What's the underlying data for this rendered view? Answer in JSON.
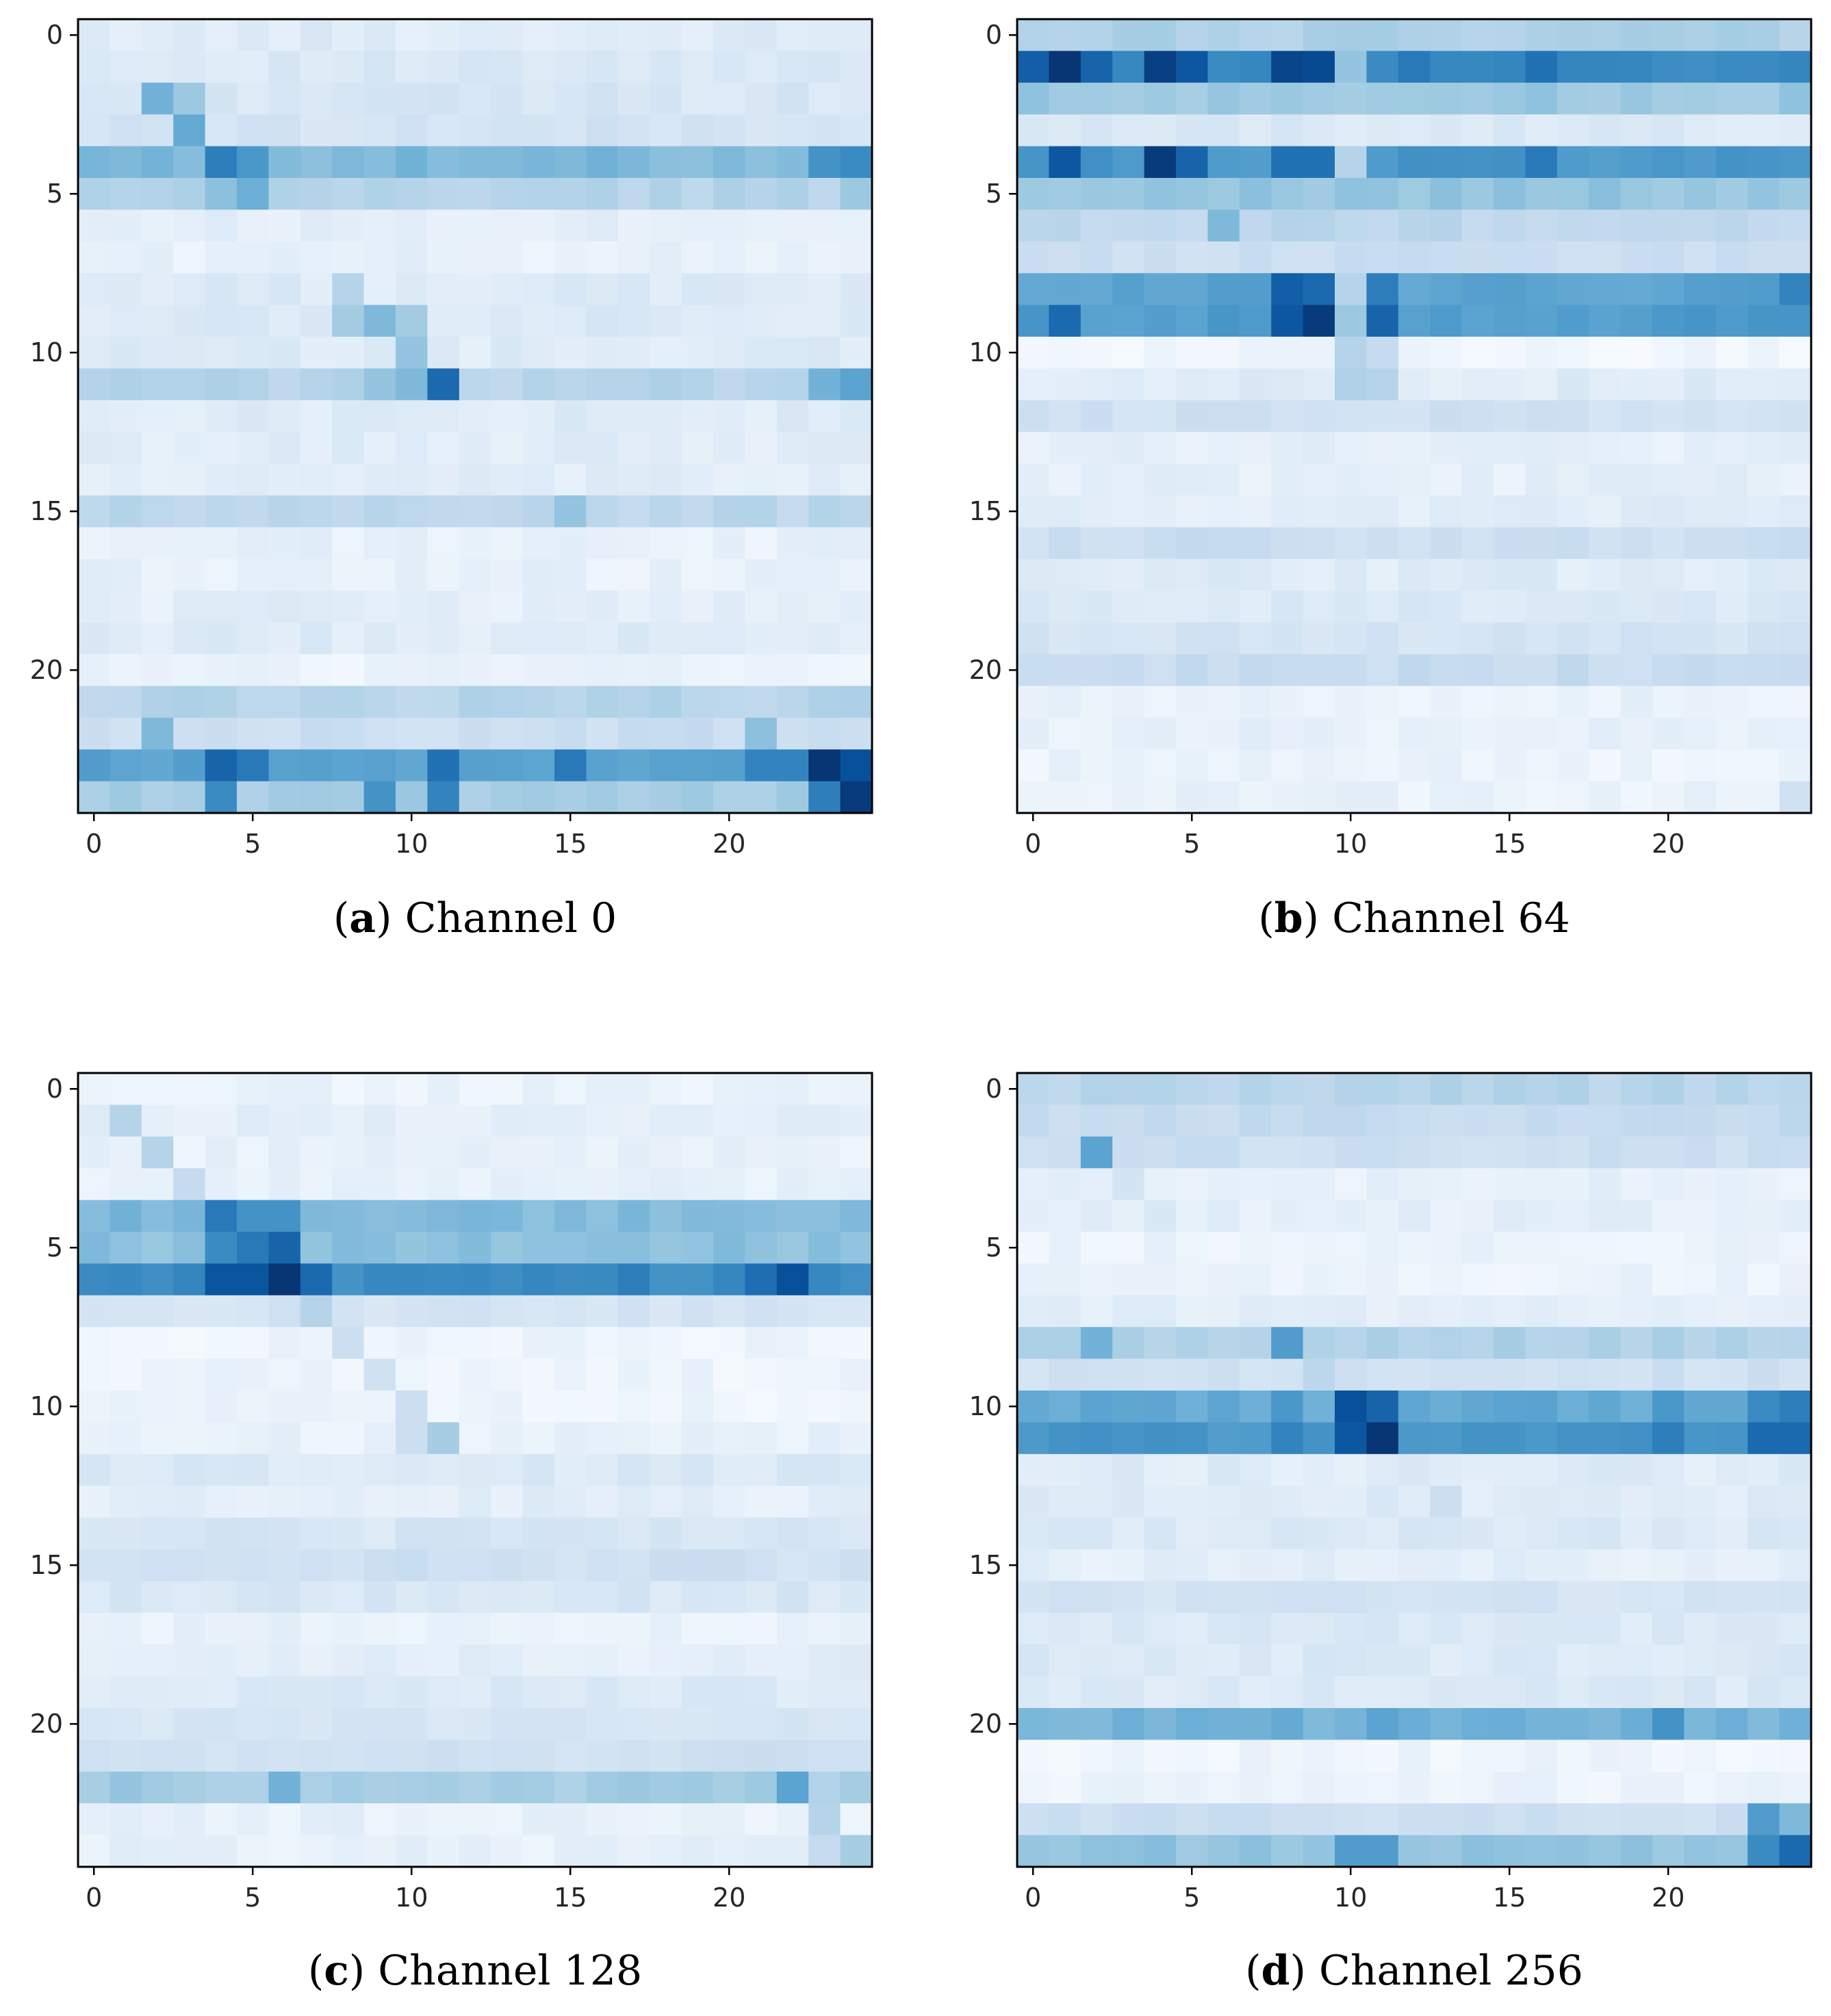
{
  "figure": {
    "colormap": "Blues",
    "colormap_low": "#f7fbff",
    "colormap_high": "#08306b"
  },
  "chart_data": [
    {
      "type": "heatmap",
      "panel": "a",
      "caption": {
        "letter": "a",
        "text": "Channel 0"
      },
      "xticks": [
        0,
        5,
        10,
        15,
        20
      ],
      "yticks": [
        0,
        5,
        10,
        15,
        20
      ],
      "xlim": [
        0,
        24
      ],
      "ylim": [
        0,
        24
      ],
      "grid": false,
      "rows": 25,
      "cols": 25,
      "row_base": [
        0.12,
        0.14,
        0.16,
        0.18,
        0.45,
        0.3,
        0.1,
        0.08,
        0.13,
        0.14,
        0.12,
        0.3,
        0.12,
        0.11,
        0.1,
        0.28,
        0.08,
        0.08,
        0.1,
        0.12,
        0.06,
        0.3,
        0.22,
        0.55,
        0.35
      ],
      "overrides": [
        [
          2,
          2,
          0.48
        ],
        [
          2,
          3,
          0.38
        ],
        [
          3,
          3,
          0.52
        ],
        [
          4,
          4,
          0.7
        ],
        [
          4,
          5,
          0.6
        ],
        [
          4,
          23,
          0.62
        ],
        [
          4,
          24,
          0.65
        ],
        [
          5,
          4,
          0.42
        ],
        [
          5,
          5,
          0.5
        ],
        [
          5,
          24,
          0.38
        ],
        [
          8,
          8,
          0.3
        ],
        [
          9,
          8,
          0.36
        ],
        [
          9,
          9,
          0.45
        ],
        [
          9,
          10,
          0.36
        ],
        [
          10,
          10,
          0.4
        ],
        [
          11,
          11,
          0.78
        ],
        [
          11,
          10,
          0.45
        ],
        [
          11,
          9,
          0.4
        ],
        [
          11,
          23,
          0.48
        ],
        [
          11,
          24,
          0.55
        ],
        [
          15,
          15,
          0.4
        ],
        [
          22,
          2,
          0.45
        ],
        [
          22,
          21,
          0.42
        ],
        [
          23,
          4,
          0.8
        ],
        [
          23,
          5,
          0.72
        ],
        [
          23,
          11,
          0.75
        ],
        [
          23,
          15,
          0.72
        ],
        [
          23,
          21,
          0.68
        ],
        [
          23,
          22,
          0.68
        ],
        [
          23,
          23,
          0.98
        ],
        [
          23,
          24,
          0.88
        ],
        [
          24,
          4,
          0.65
        ],
        [
          24,
          9,
          0.62
        ],
        [
          24,
          11,
          0.68
        ],
        [
          24,
          23,
          0.7
        ],
        [
          24,
          24,
          0.96
        ]
      ]
    },
    {
      "type": "heatmap",
      "panel": "b",
      "caption": {
        "letter": "b",
        "text": "Channel 64"
      },
      "xticks": [
        0,
        5,
        10,
        15,
        20
      ],
      "yticks": [
        0,
        5,
        10,
        15,
        20
      ],
      "xlim": [
        0,
        24
      ],
      "ylim": [
        0,
        24
      ],
      "grid": false,
      "rows": 25,
      "cols": 25,
      "row_base": [
        0.32,
        0.65,
        0.38,
        0.14,
        0.6,
        0.4,
        0.28,
        0.22,
        0.55,
        0.58,
        0.04,
        0.12,
        0.2,
        0.09,
        0.09,
        0.11,
        0.22,
        0.12,
        0.14,
        0.18,
        0.24,
        0.07,
        0.08,
        0.06,
        0.07
      ],
      "overrides": [
        [
          1,
          0,
          0.82
        ],
        [
          1,
          1,
          0.98
        ],
        [
          1,
          2,
          0.8
        ],
        [
          1,
          4,
          0.94
        ],
        [
          1,
          5,
          0.85
        ],
        [
          1,
          8,
          0.92
        ],
        [
          1,
          9,
          0.9
        ],
        [
          1,
          10,
          0.4
        ],
        [
          1,
          12,
          0.72
        ],
        [
          1,
          16,
          0.75
        ],
        [
          4,
          1,
          0.85
        ],
        [
          4,
          4,
          0.96
        ],
        [
          4,
          5,
          0.8
        ],
        [
          4,
          8,
          0.75
        ],
        [
          4,
          9,
          0.75
        ],
        [
          4,
          10,
          0.3
        ],
        [
          4,
          16,
          0.72
        ],
        [
          6,
          6,
          0.45
        ],
        [
          8,
          8,
          0.82
        ],
        [
          8,
          9,
          0.78
        ],
        [
          8,
          10,
          0.3
        ],
        [
          8,
          11,
          0.7
        ],
        [
          8,
          24,
          0.68
        ],
        [
          9,
          8,
          0.85
        ],
        [
          9,
          9,
          0.96
        ],
        [
          9,
          10,
          0.38
        ],
        [
          9,
          11,
          0.8
        ],
        [
          9,
          1,
          0.78
        ],
        [
          10,
          10,
          0.3
        ],
        [
          10,
          11,
          0.25
        ],
        [
          11,
          10,
          0.32
        ],
        [
          11,
          11,
          0.3
        ],
        [
          24,
          24,
          0.2
        ]
      ]
    },
    {
      "type": "heatmap",
      "panel": "c",
      "caption": {
        "letter": "c",
        "text": "Channel 128"
      },
      "xticks": [
        0,
        5,
        10,
        15,
        20
      ],
      "yticks": [
        0,
        5,
        10,
        15,
        20
      ],
      "xlim": [
        0,
        24
      ],
      "ylim": [
        0,
        24
      ],
      "grid": false,
      "rows": 25,
      "cols": 25,
      "row_base": [
        0.06,
        0.1,
        0.08,
        0.08,
        0.45,
        0.42,
        0.65,
        0.18,
        0.05,
        0.05,
        0.05,
        0.08,
        0.14,
        0.1,
        0.16,
        0.2,
        0.16,
        0.08,
        0.1,
        0.14,
        0.16,
        0.2,
        0.35,
        0.08,
        0.08
      ],
      "overrides": [
        [
          1,
          1,
          0.3
        ],
        [
          2,
          2,
          0.3
        ],
        [
          3,
          3,
          0.25
        ],
        [
          4,
          4,
          0.72
        ],
        [
          4,
          5,
          0.62
        ],
        [
          4,
          6,
          0.62
        ],
        [
          5,
          4,
          0.65
        ],
        [
          5,
          5,
          0.72
        ],
        [
          5,
          6,
          0.8
        ],
        [
          6,
          4,
          0.86
        ],
        [
          6,
          5,
          0.86
        ],
        [
          6,
          6,
          0.98
        ],
        [
          6,
          7,
          0.78
        ],
        [
          6,
          22,
          0.88
        ],
        [
          6,
          17,
          0.7
        ],
        [
          6,
          21,
          0.76
        ],
        [
          7,
          7,
          0.3
        ],
        [
          8,
          8,
          0.22
        ],
        [
          9,
          9,
          0.2
        ],
        [
          10,
          10,
          0.22
        ],
        [
          11,
          10,
          0.22
        ],
        [
          11,
          11,
          0.35
        ],
        [
          22,
          6,
          0.48
        ],
        [
          22,
          22,
          0.55
        ],
        [
          22,
          1,
          0.4
        ],
        [
          23,
          23,
          0.3
        ],
        [
          24,
          23,
          0.25
        ],
        [
          24,
          24,
          0.35
        ]
      ]
    },
    {
      "type": "heatmap",
      "panel": "d",
      "caption": {
        "letter": "d",
        "text": "Channel 256"
      },
      "xticks": [
        0,
        5,
        10,
        15,
        20
      ],
      "yticks": [
        0,
        5,
        10,
        15,
        20
      ],
      "xlim": [
        0,
        24
      ],
      "ylim": [
        0,
        24
      ],
      "grid": false,
      "rows": 25,
      "cols": 25,
      "row_base": [
        0.3,
        0.25,
        0.22,
        0.08,
        0.1,
        0.06,
        0.06,
        0.1,
        0.32,
        0.2,
        0.52,
        0.6,
        0.12,
        0.12,
        0.14,
        0.1,
        0.18,
        0.14,
        0.14,
        0.14,
        0.48,
        0.05,
        0.06,
        0.22,
        0.4
      ],
      "overrides": [
        [
          2,
          2,
          0.55
        ],
        [
          3,
          3,
          0.18
        ],
        [
          4,
          4,
          0.15
        ],
        [
          8,
          8,
          0.58
        ],
        [
          8,
          2,
          0.48
        ],
        [
          9,
          9,
          0.28
        ],
        [
          10,
          10,
          0.88
        ],
        [
          10,
          11,
          0.8
        ],
        [
          10,
          8,
          0.6
        ],
        [
          10,
          20,
          0.6
        ],
        [
          10,
          23,
          0.65
        ],
        [
          10,
          24,
          0.7
        ],
        [
          11,
          10,
          0.85
        ],
        [
          11,
          11,
          0.98
        ],
        [
          11,
          8,
          0.68
        ],
        [
          11,
          20,
          0.7
        ],
        [
          11,
          23,
          0.78
        ],
        [
          11,
          24,
          0.78
        ],
        [
          13,
          13,
          0.22
        ],
        [
          20,
          20,
          0.62
        ],
        [
          20,
          8,
          0.52
        ],
        [
          20,
          11,
          0.55
        ],
        [
          23,
          23,
          0.58
        ],
        [
          23,
          24,
          0.45
        ],
        [
          24,
          24,
          0.78
        ],
        [
          24,
          23,
          0.65
        ],
        [
          24,
          10,
          0.58
        ],
        [
          24,
          11,
          0.58
        ]
      ]
    }
  ]
}
